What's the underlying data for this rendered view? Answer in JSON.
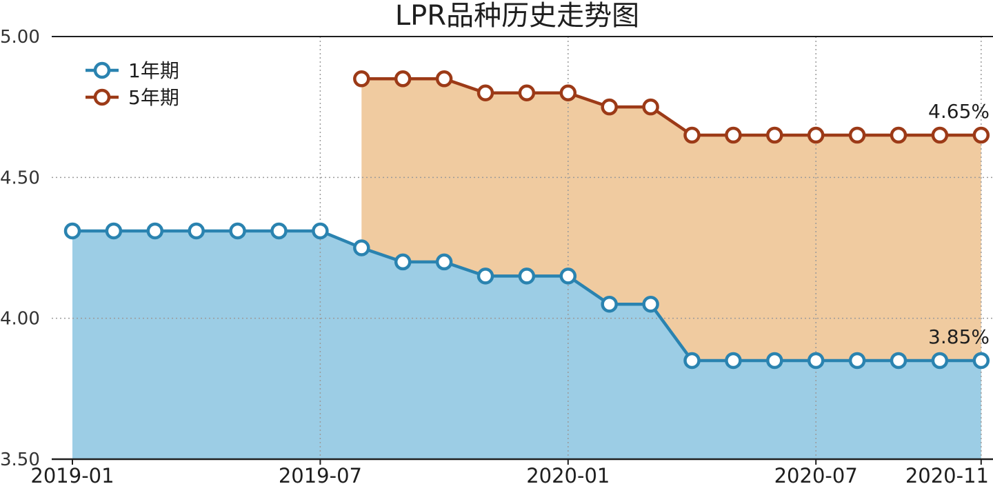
{
  "chart_data": {
    "type": "area",
    "title": "LPR品种历史走势图",
    "xlabel": "",
    "ylabel": "",
    "ylim": [
      3.5,
      5.0
    ],
    "yticks": [
      "3.50",
      "4.00",
      "4.50",
      "5.00"
    ],
    "ytick_values": [
      3.5,
      4.0,
      4.5,
      5.0
    ],
    "xticks": [
      "2019-01",
      "2019-07",
      "2020-01",
      "2020-07",
      "2020-11"
    ],
    "xtick_index": [
      0,
      6,
      12,
      18,
      22
    ],
    "grid": "dotted",
    "legend_position": "top-left",
    "categories": [
      "2019-01",
      "2019-02",
      "2019-03",
      "2019-04",
      "2019-05",
      "2019-06",
      "2019-07",
      "2019-08",
      "2019-09",
      "2019-10",
      "2019-11",
      "2019-12",
      "2020-01",
      "2020-02",
      "2020-03",
      "2020-04",
      "2020-05",
      "2020-06",
      "2020-07",
      "2020-08",
      "2020-09",
      "2020-10",
      "2020-11"
    ],
    "series": [
      {
        "name": "1年期",
        "color": "#2a83b0",
        "fill": "#9ccde5",
        "values": [
          4.31,
          4.31,
          4.31,
          4.31,
          4.31,
          4.31,
          4.31,
          4.25,
          4.2,
          4.2,
          4.15,
          4.15,
          4.15,
          4.05,
          4.05,
          3.85,
          3.85,
          3.85,
          3.85,
          3.85,
          3.85,
          3.85,
          3.85
        ],
        "end_label": "3.85%"
      },
      {
        "name": "5年期",
        "color": "#9c3a17",
        "fill": "#f0cba0",
        "values": [
          null,
          null,
          null,
          null,
          null,
          null,
          null,
          4.85,
          4.85,
          4.85,
          4.8,
          4.8,
          4.8,
          4.75,
          4.75,
          4.65,
          4.65,
          4.65,
          4.65,
          4.65,
          4.65,
          4.65,
          4.65
        ],
        "end_label": "4.65%"
      }
    ]
  }
}
